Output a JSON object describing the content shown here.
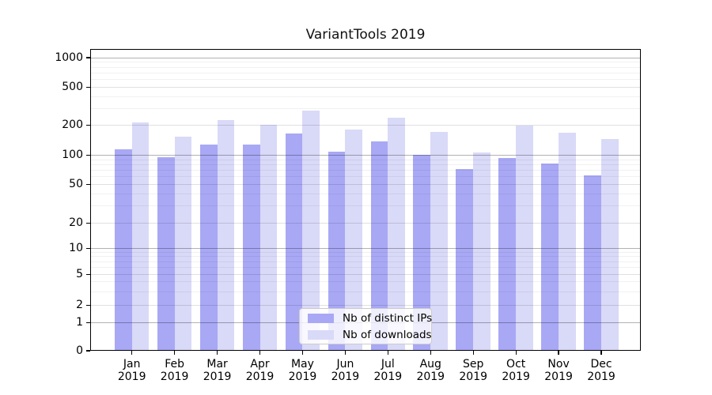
{
  "title": "VariantTools 2019",
  "chart_data": {
    "type": "bar",
    "title": "VariantTools 2019",
    "categories": [
      "Jan",
      "Feb",
      "Mar",
      "Apr",
      "May",
      "Jun",
      "Jul",
      "Aug",
      "Sep",
      "Oct",
      "Nov",
      "Dec"
    ],
    "x_label_line2": "2019",
    "series": [
      {
        "name": "Nb of distinct IPs",
        "color": "#a8a8f5",
        "values": [
          115,
          95,
          128,
          127,
          165,
          108,
          137,
          100,
          72,
          93,
          82,
          62
        ]
      },
      {
        "name": "Nb of downloads",
        "color": "#d9d9f8",
        "values": [
          213,
          155,
          227,
          204,
          285,
          182,
          240,
          172,
          107,
          200,
          168,
          145
        ]
      }
    ],
    "y_ticks": [
      0,
      1,
      2,
      5,
      10,
      20,
      50,
      100,
      200,
      500,
      1000
    ],
    "y_axis_scale": "symlog",
    "ylim": [
      0,
      1600
    ],
    "grid": "both",
    "legend_position": "lower center",
    "background_color": "#ffffff",
    "gridline_color": "#b0b0b0"
  }
}
